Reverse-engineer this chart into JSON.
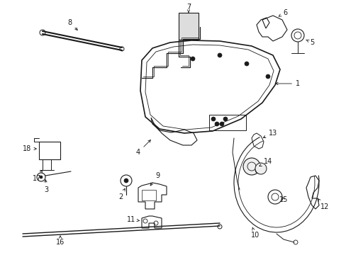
{
  "bg_color": "#ffffff",
  "line_color": "#1a1a1a",
  "figsize": [
    4.89,
    3.6
  ],
  "dpi": 100,
  "lfs": 7.0
}
